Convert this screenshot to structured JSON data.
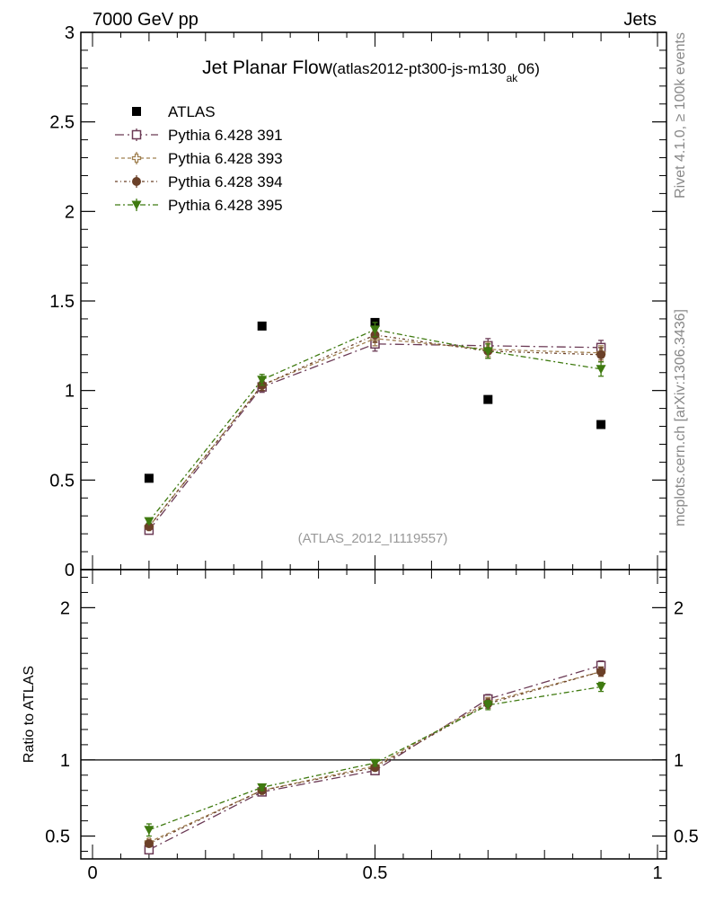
{
  "header": {
    "left": "7000 GeV pp",
    "right": "Jets"
  },
  "side_text": {
    "rivet": "Rivet 4.1.0, ≥ 100k events",
    "mcplots": "mcplots.cern.ch [arXiv:1306.3436]"
  },
  "colors": {
    "atlas": "#000000",
    "p391": "#6b3a55",
    "p393": "#a08050",
    "p394": "#6b4028",
    "p395": "#3f7a10",
    "watermark": "#999999"
  },
  "chart_data": {
    "type": "scatter",
    "title": "Jet Planar Flow",
    "title_sub": "(atlas2012-pt300-js-m130",
    "title_subscript": "ak",
    "title_end": "06)",
    "watermark": "(ATLAS_2012_I1119557)",
    "x": [
      0.1,
      0.3,
      0.5,
      0.7,
      0.9
    ],
    "xlim": [
      0,
      1
    ],
    "xticks": [
      "0",
      "0.5",
      "1"
    ],
    "xtick_values": [
      0,
      0.5,
      1
    ],
    "main": {
      "ylim": [
        0,
        3
      ],
      "yticks": [
        "0",
        "0.5",
        "1",
        "1.5",
        "2",
        "2.5",
        "3"
      ],
      "ytick_values": [
        0,
        0.5,
        1,
        1.5,
        2,
        2.5,
        3
      ],
      "series": [
        {
          "key": "atlas",
          "name": "ATLAS",
          "values": [
            0.51,
            1.36,
            1.38,
            0.95,
            0.81
          ],
          "errors": [
            0.01,
            0.01,
            0.01,
            0.01,
            0.01
          ]
        },
        {
          "key": "p391",
          "name": "Pythia 6.428 391",
          "values": [
            0.22,
            1.02,
            1.26,
            1.25,
            1.24
          ],
          "errors": [
            0.01,
            0.03,
            0.04,
            0.04,
            0.04
          ]
        },
        {
          "key": "p393",
          "name": "Pythia 6.428 393",
          "values": [
            0.24,
            1.03,
            1.29,
            1.23,
            1.21
          ],
          "errors": [
            0.01,
            0.03,
            0.04,
            0.04,
            0.04
          ]
        },
        {
          "key": "p394",
          "name": "Pythia 6.428 394",
          "values": [
            0.24,
            1.03,
            1.31,
            1.22,
            1.2
          ],
          "errors": [
            0.01,
            0.03,
            0.04,
            0.04,
            0.04
          ]
        },
        {
          "key": "p395",
          "name": "Pythia 6.428 395",
          "values": [
            0.27,
            1.06,
            1.34,
            1.22,
            1.12
          ],
          "errors": [
            0.01,
            0.03,
            0.04,
            0.04,
            0.04
          ]
        }
      ]
    },
    "ratio": {
      "ylabel": "Ratio to ATLAS",
      "ylim": [
        0.35,
        2.25
      ],
      "yticks": [
        "0.5",
        "1",
        "2"
      ],
      "ytick_values": [
        0.5,
        1,
        2
      ],
      "series": [
        {
          "key": "p391",
          "values": [
            0.41,
            0.79,
            0.93,
            1.4,
            1.62
          ],
          "errors": [
            0.02,
            0.02,
            0.02,
            0.03,
            0.03
          ]
        },
        {
          "key": "p393",
          "values": [
            0.46,
            0.8,
            0.96,
            1.38,
            1.58
          ],
          "errors": [
            0.02,
            0.02,
            0.02,
            0.03,
            0.03
          ]
        },
        {
          "key": "p394",
          "values": [
            0.45,
            0.8,
            0.95,
            1.37,
            1.58
          ],
          "errors": [
            0.02,
            0.02,
            0.02,
            0.03,
            0.03
          ]
        },
        {
          "key": "p395",
          "values": [
            0.54,
            0.82,
            0.98,
            1.36,
            1.48
          ],
          "errors": [
            0.04,
            0.02,
            0.02,
            0.03,
            0.03
          ]
        }
      ]
    }
  }
}
